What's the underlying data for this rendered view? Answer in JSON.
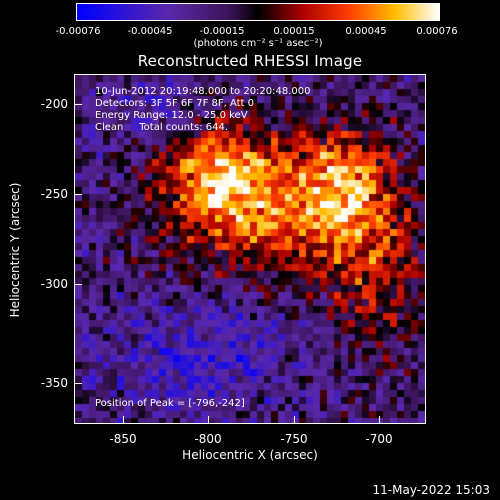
{
  "colorbar": {
    "ticks": [
      "-0.00076",
      "-0.00045",
      "-0.00015",
      "0.00015",
      "0.00045",
      "0.00076"
    ],
    "units": "(photons cm⁻² s⁻¹ asec⁻²)"
  },
  "title": "Reconstructed RHESSI Image",
  "info": {
    "time_range": "10-Jun-2012 20:19:48.000 to 20:20:48.000",
    "detectors": "Detectors: 3F 5F 6F 7F 8F, Att 0",
    "energy": "Energy Range: 12.0 - 25.0 keV",
    "clean": "Clean     Total counts: 644.",
    "peak": "Position of Peak = [-796,-242]"
  },
  "axes": {
    "x_ticks": [
      "-850",
      "-800",
      "-750",
      "-700"
    ],
    "y_ticks": [
      "-200",
      "-250",
      "-300",
      "-350"
    ],
    "xlabel": "Heliocentric X (arcsec)",
    "ylabel": "Heliocentric Y (arcsec)"
  },
  "footer": "11-May-2022 15:03",
  "colors": {
    "background": "#000000",
    "text": "#ffffff"
  }
}
